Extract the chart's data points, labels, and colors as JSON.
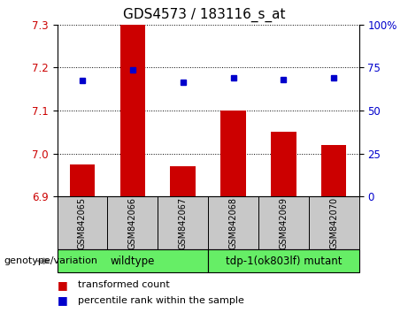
{
  "title": "GDS4573 / 183116_s_at",
  "samples": [
    "GSM842065",
    "GSM842066",
    "GSM842067",
    "GSM842068",
    "GSM842069",
    "GSM842070"
  ],
  "red_bars": [
    6.975,
    7.3,
    6.97,
    7.1,
    7.05,
    7.02
  ],
  "blue_dots_left": [
    7.17,
    7.195,
    7.165,
    7.175,
    7.172,
    7.175
  ],
  "ylim_left": [
    6.9,
    7.3
  ],
  "ylim_right": [
    0,
    100
  ],
  "y_ticks_left": [
    6.9,
    7.0,
    7.1,
    7.2,
    7.3
  ],
  "y_ticks_right": [
    0,
    25,
    50,
    75,
    100
  ],
  "bar_color": "#cc0000",
  "dot_color": "#0000cc",
  "bar_bottom": 6.9,
  "wildtype_indices": [
    0,
    1,
    2
  ],
  "mutant_indices": [
    3,
    4,
    5
  ],
  "wildtype_label": "wildtype",
  "mutant_label": "tdp-1(ok803lf) mutant",
  "group_color": "#66ee66",
  "sample_box_color": "#c8c8c8",
  "genotype_label": "genotype/variation",
  "legend_red": "transformed count",
  "legend_blue": "percentile rank within the sample",
  "title_fontsize": 11,
  "tick_fontsize": 8.5,
  "sample_fontsize": 7,
  "group_fontsize": 8.5,
  "legend_fontsize": 8,
  "genotype_fontsize": 8
}
